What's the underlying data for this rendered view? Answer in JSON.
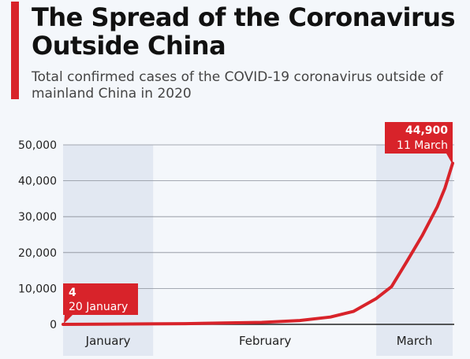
{
  "header": {
    "title": "The Spread of the Coronavirus Outside China",
    "subtitle": "Total confirmed cases of the COVID-19 coronavirus outside of mainland China in 2020"
  },
  "colors": {
    "accent": "#d8232a",
    "line": "#d8232a",
    "month_shade": "#e2e8f2",
    "background": "#f4f7fb",
    "gridline": "#8a8f99"
  },
  "chart_data": {
    "type": "line",
    "title": "The Spread of the Coronavirus Outside China",
    "subtitle": "Total confirmed cases of the COVID-19 coronavirus outside of mainland China in 2020",
    "xlabel": "",
    "ylabel": "",
    "ylim": [
      0,
      50000
    ],
    "yticks": [
      0,
      10000,
      20000,
      30000,
      40000,
      50000
    ],
    "ytick_labels": [
      "0",
      "10,000",
      "20,000",
      "30,000",
      "40,000",
      "50,000"
    ],
    "xlim": [
      "2020-01-20",
      "2020-03-11"
    ],
    "x_labels": [
      "January",
      "February",
      "March"
    ],
    "shaded_months": [
      "January",
      "March"
    ],
    "grid": true,
    "series": [
      {
        "x": [
          "2020-01-20",
          "2020-01-25",
          "2020-01-31",
          "2020-02-05",
          "2020-02-10",
          "2020-02-15",
          "2020-02-20",
          "2020-02-24",
          "2020-02-27",
          "2020-03-01",
          "2020-03-03",
          "2020-03-05",
          "2020-03-07",
          "2020-03-09",
          "2020-03-10",
          "2020-03-11"
        ],
        "y": [
          4,
          60,
          130,
          200,
          390,
          550,
          1070,
          2050,
          3600,
          7200,
          10500,
          17500,
          24700,
          32800,
          38000,
          44900
        ]
      }
    ],
    "annotations": [
      {
        "value": "4",
        "date": "20 January"
      },
      {
        "value": "44,900",
        "date": "11 March"
      }
    ]
  }
}
